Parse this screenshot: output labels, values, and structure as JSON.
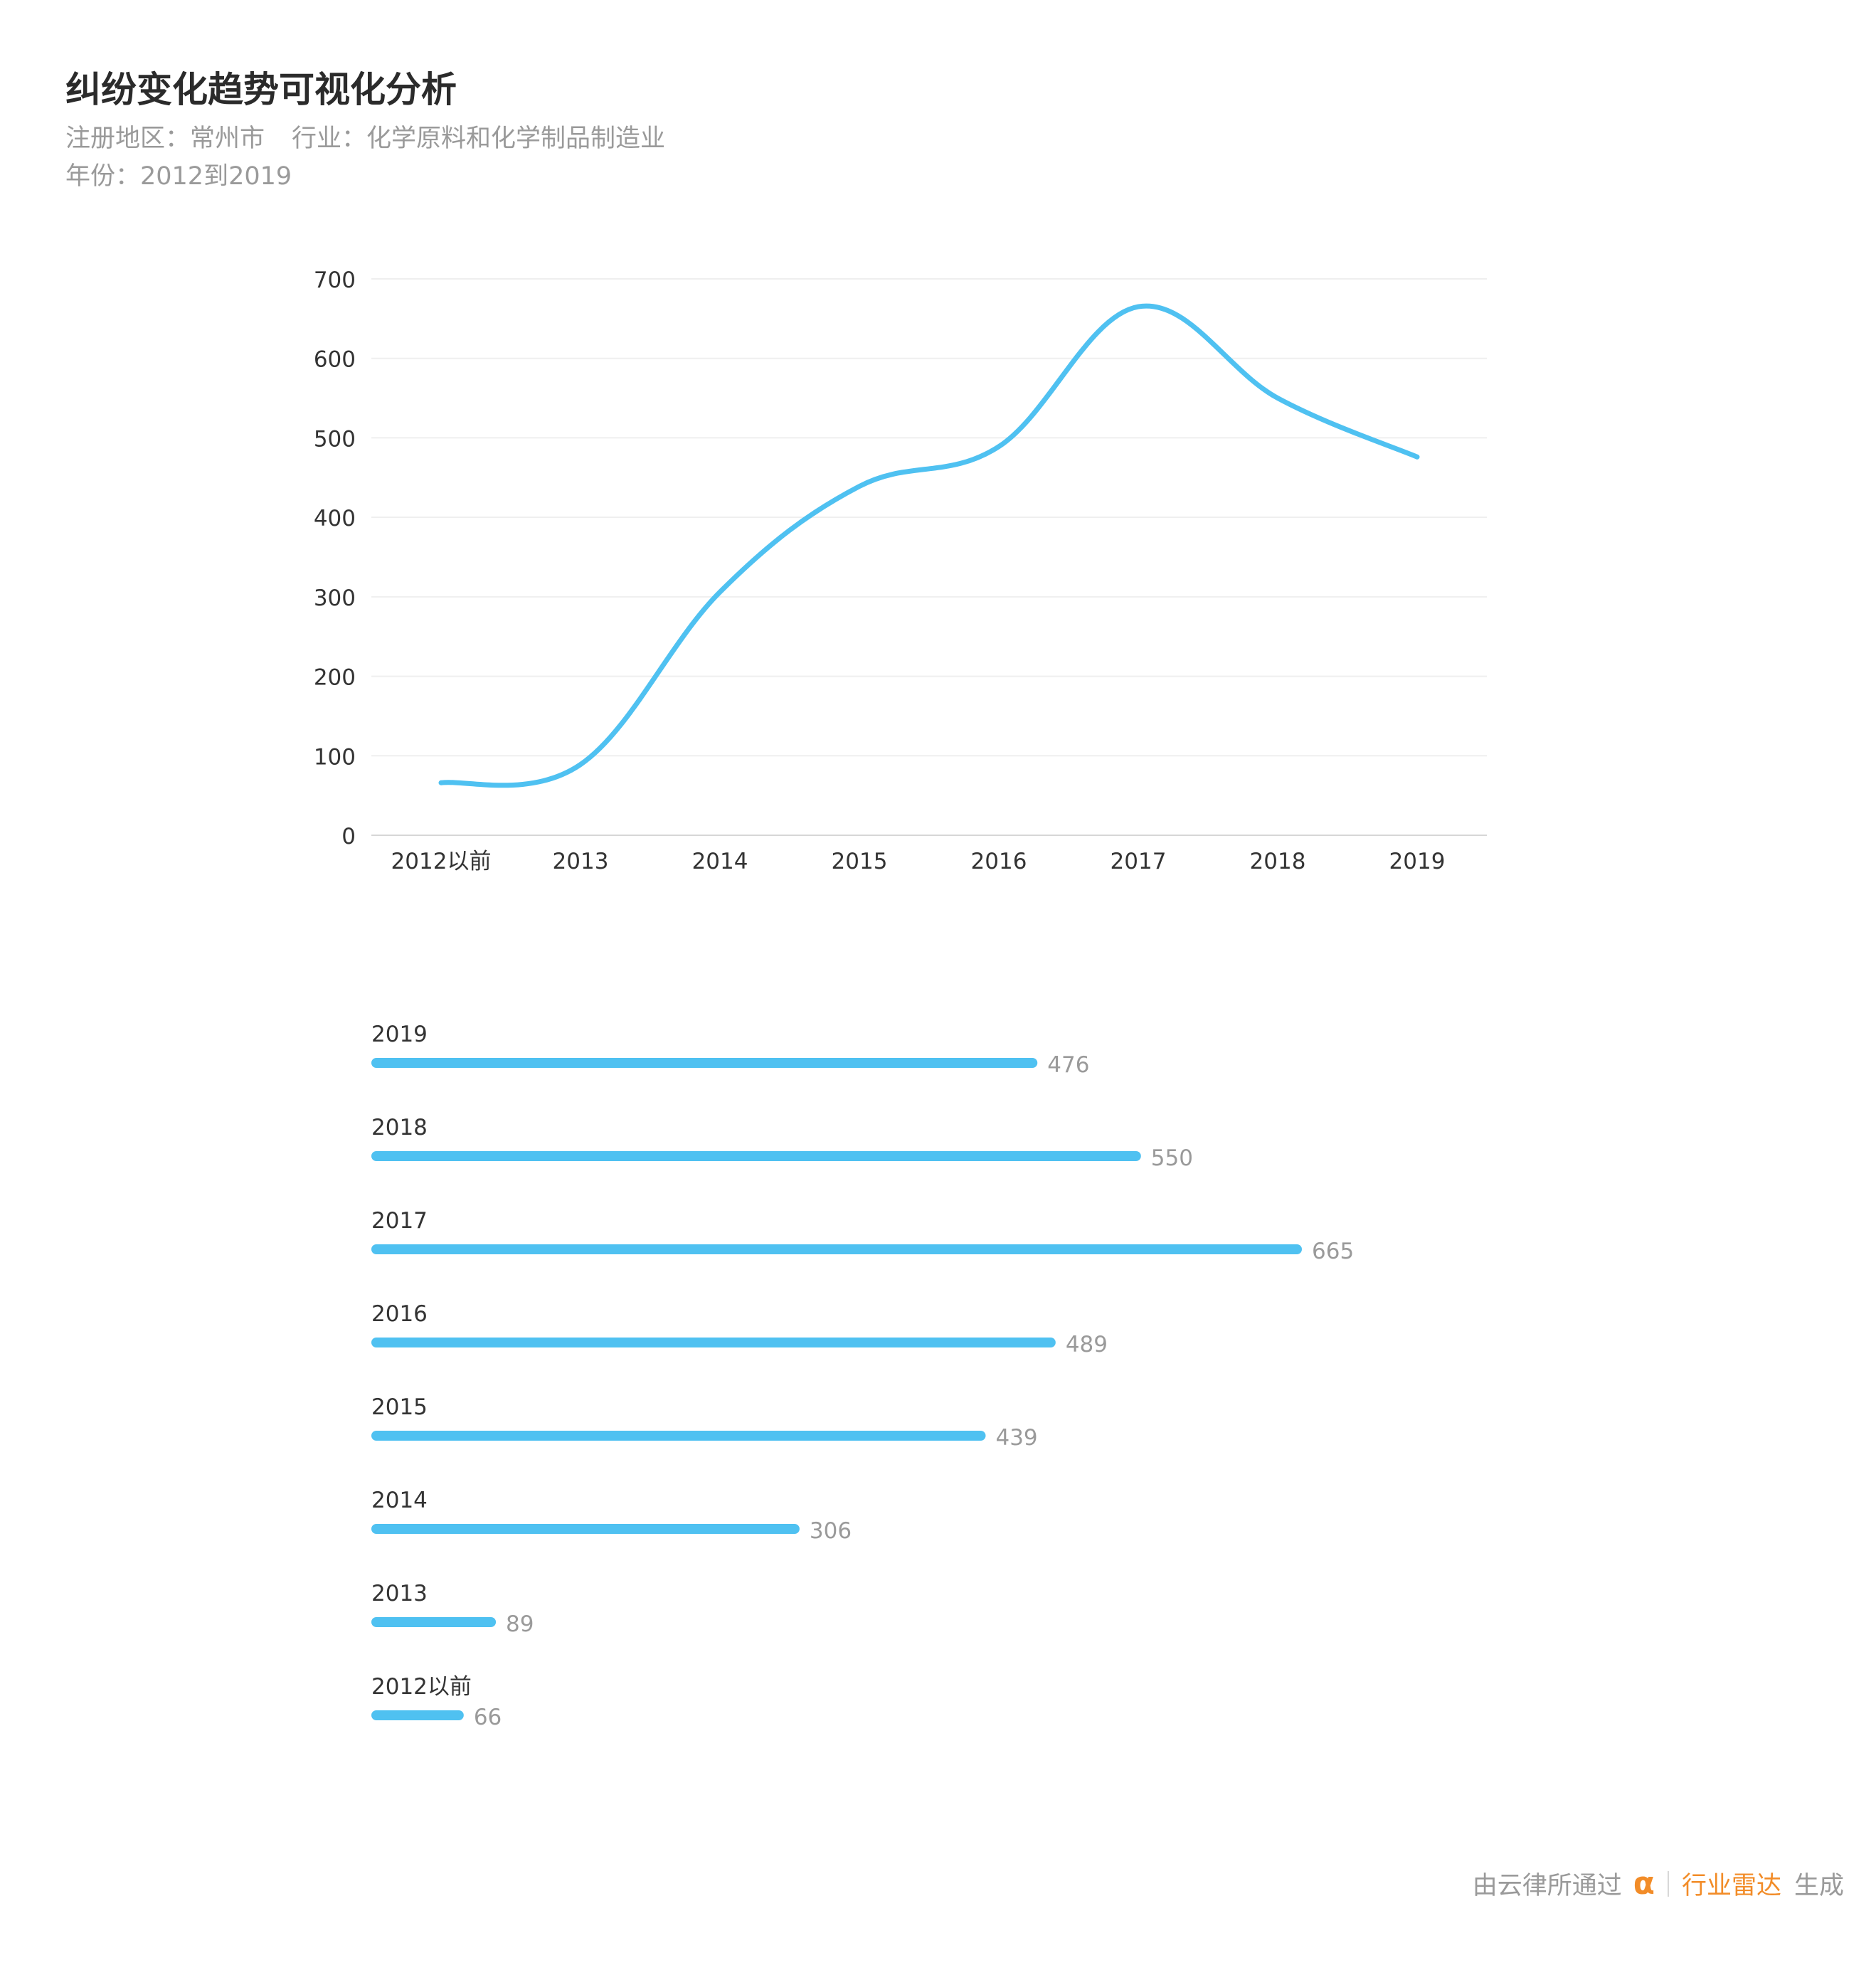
{
  "header": {
    "title": "纠纷变化趋势可视化分析",
    "region_label": "注册地区：常州市",
    "industry_label": "行业：化学原料和化学制品制造业",
    "year_label": "年份：2012到2019"
  },
  "footer": {
    "prefix": "由云律所通过",
    "logo_icon": "alpha-logo-icon",
    "logo_glyph": "α",
    "brand": "行业雷达",
    "suffix": "生成"
  },
  "colors": {
    "accent": "#4fc1f1",
    "footer_brand": "#f28c28"
  },
  "chart_data": [
    {
      "type": "line",
      "title": "",
      "xlabel": "",
      "ylabel": "",
      "categories": [
        "2012以前",
        "2013",
        "2014",
        "2015",
        "2016",
        "2017",
        "2018",
        "2019"
      ],
      "values": [
        66,
        89,
        306,
        439,
        489,
        665,
        550,
        476
      ],
      "ylim": [
        0,
        700
      ],
      "yticks": [
        0,
        100,
        200,
        300,
        400,
        500,
        600,
        700
      ],
      "grid": true,
      "smooth": true
    },
    {
      "type": "bar",
      "orientation": "horizontal",
      "categories": [
        "2019",
        "2018",
        "2017",
        "2016",
        "2015",
        "2014",
        "2013",
        "2012以前"
      ],
      "values": [
        476,
        550,
        665,
        489,
        439,
        306,
        89,
        66
      ],
      "data_labels": true
    }
  ]
}
